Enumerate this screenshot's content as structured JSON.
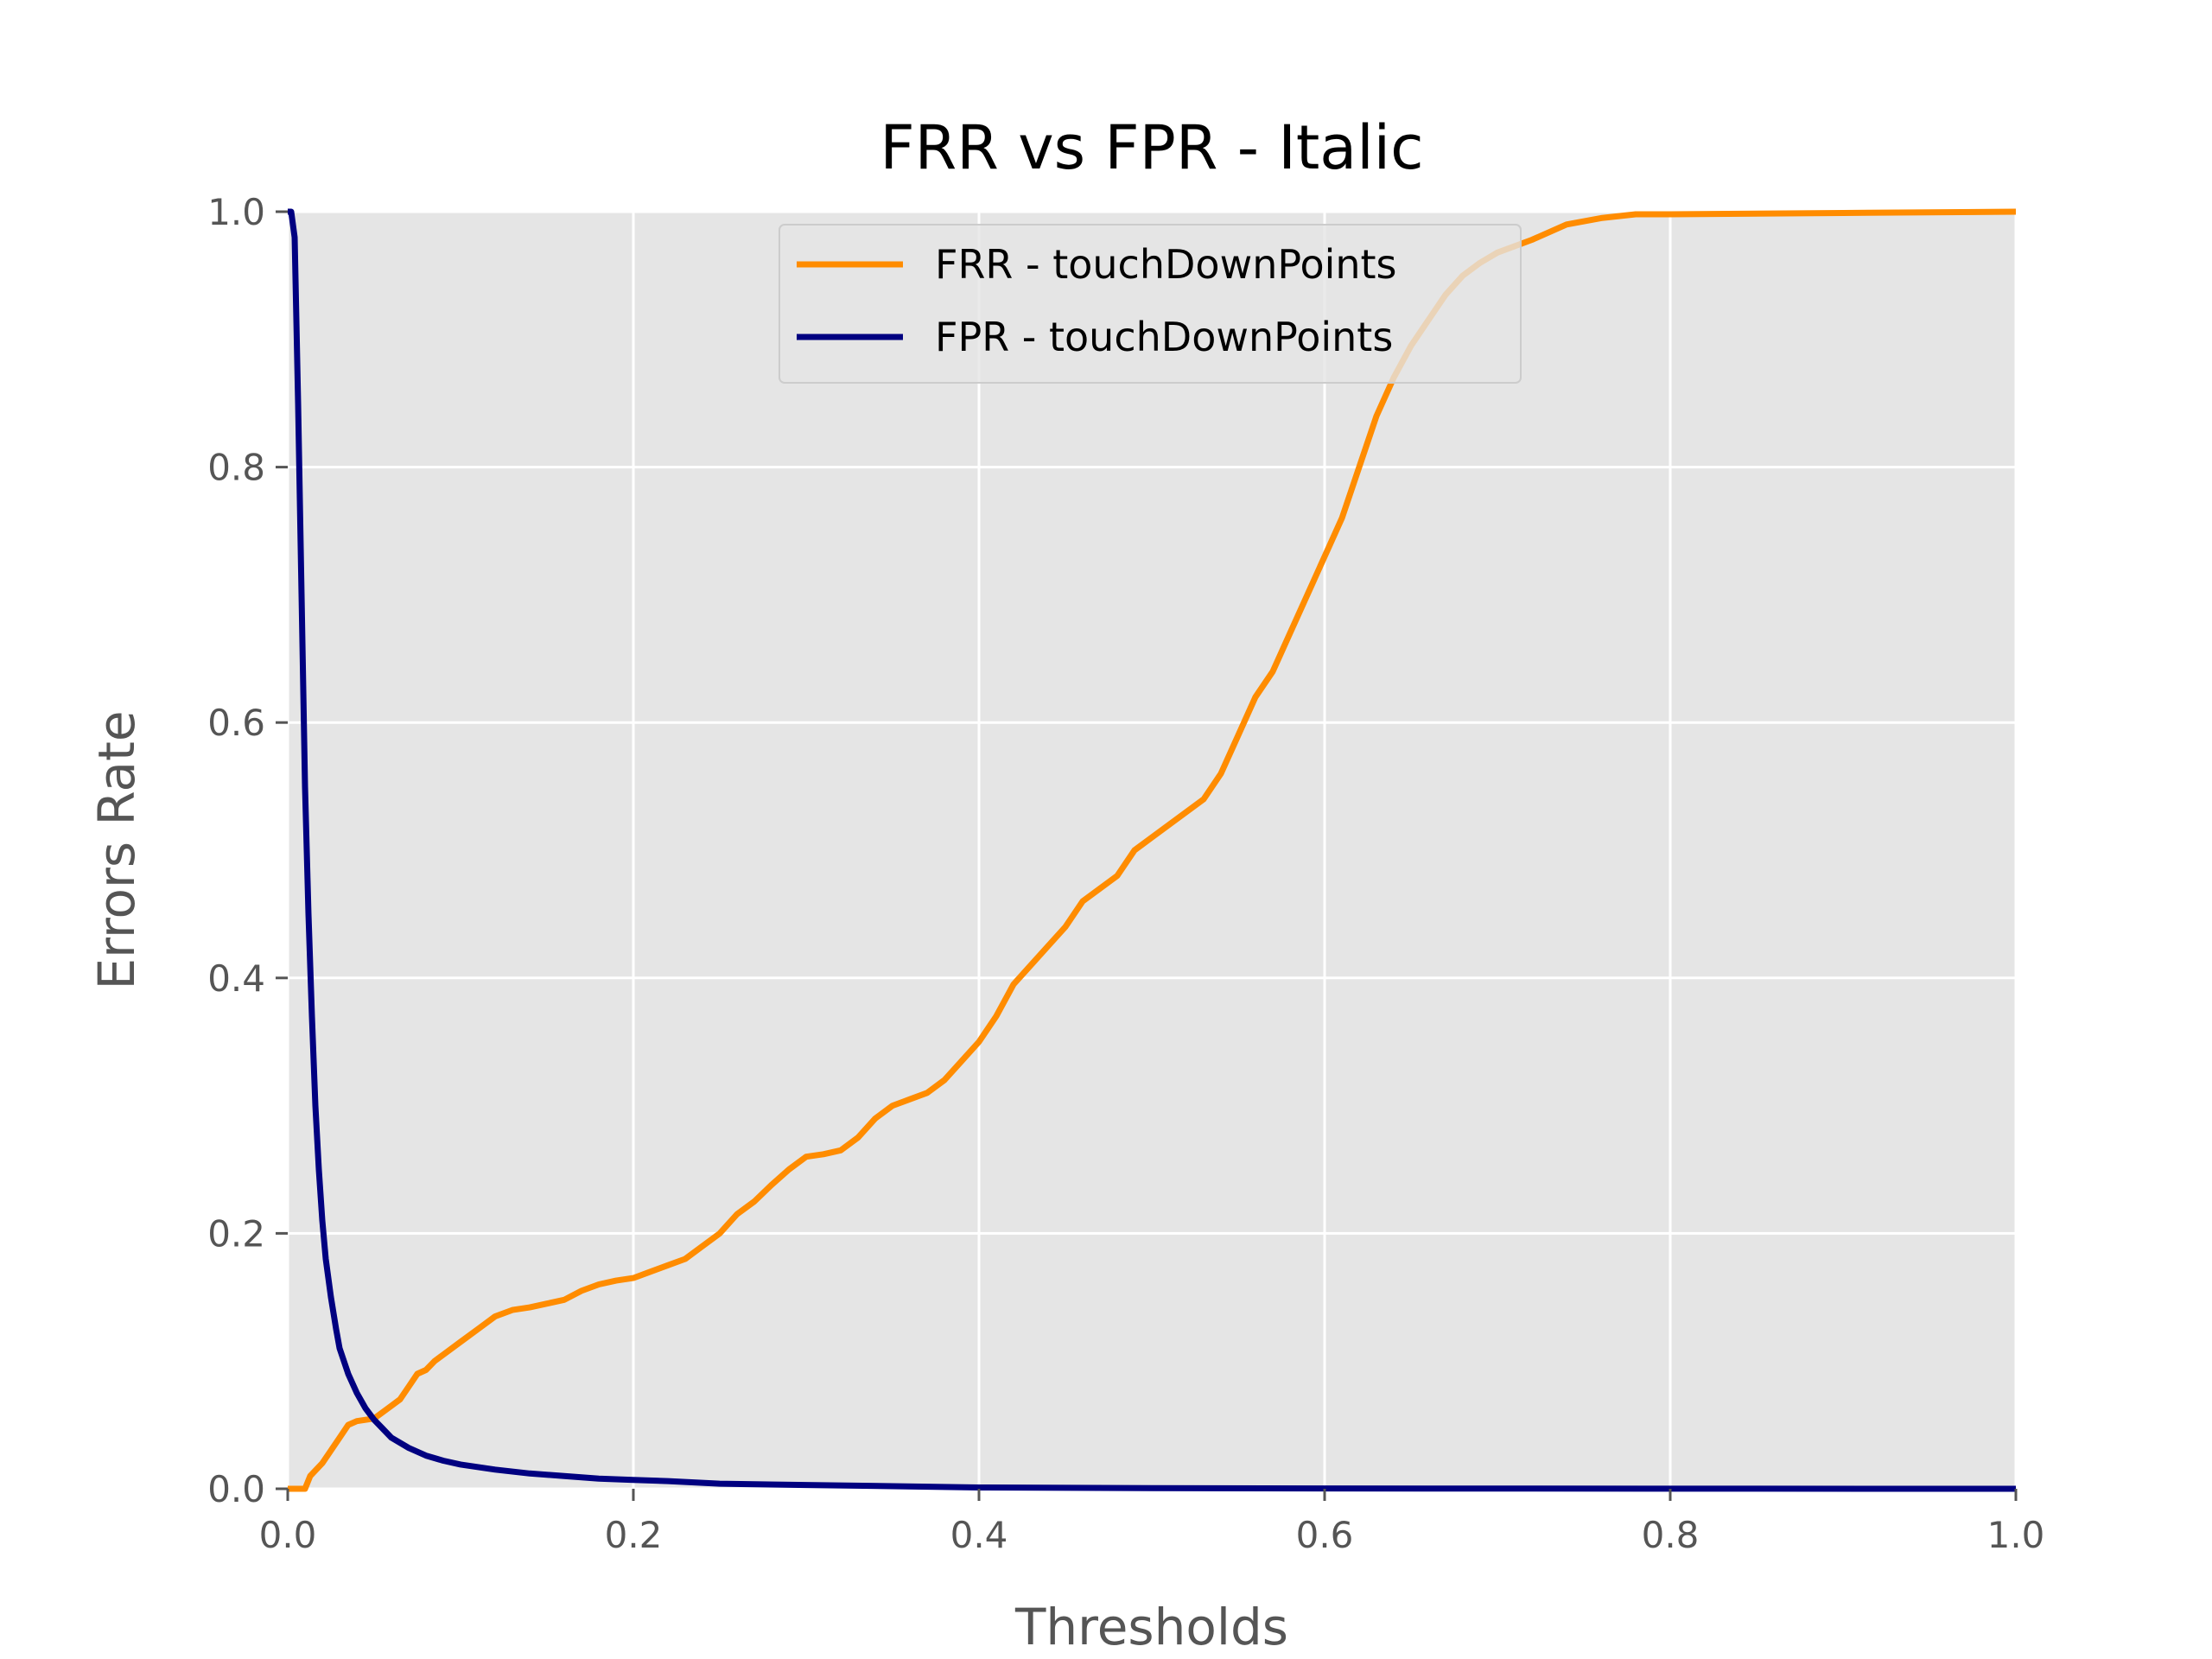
{
  "chart_data": {
    "type": "line",
    "title": "FRR vs FPR - Italic",
    "xlabel": "Thresholds",
    "ylabel": "Errors Rate",
    "xlim": [
      0.0,
      1.0
    ],
    "ylim": [
      0.0,
      1.0
    ],
    "xticks": [
      "0.0",
      "0.2",
      "0.4",
      "0.6",
      "0.8",
      "1.0"
    ],
    "yticks": [
      "0.0",
      "0.2",
      "0.4",
      "0.6",
      "0.8",
      "1.0"
    ],
    "grid": true,
    "background_color": "#e5e5e5",
    "grid_color": "#ffffff",
    "legend_position": "upper-center",
    "series": [
      {
        "name": "FRR - touchDownPoints",
        "color": "#ff8c00",
        "x": [
          0.0,
          0.01,
          0.013,
          0.02,
          0.025,
          0.03,
          0.035,
          0.04,
          0.05,
          0.055,
          0.06,
          0.065,
          0.07,
          0.075,
          0.08,
          0.085,
          0.09,
          0.1,
          0.11,
          0.12,
          0.13,
          0.14,
          0.15,
          0.16,
          0.17,
          0.18,
          0.19,
          0.2,
          0.21,
          0.22,
          0.23,
          0.24,
          0.25,
          0.26,
          0.27,
          0.28,
          0.29,
          0.3,
          0.31,
          0.32,
          0.33,
          0.34,
          0.35,
          0.36,
          0.37,
          0.38,
          0.39,
          0.4,
          0.41,
          0.42,
          0.43,
          0.44,
          0.45,
          0.46,
          0.47,
          0.48,
          0.49,
          0.5,
          0.51,
          0.52,
          0.53,
          0.54,
          0.55,
          0.56,
          0.57,
          0.58,
          0.59,
          0.6,
          0.61,
          0.62,
          0.63,
          0.64,
          0.65,
          0.66,
          0.67,
          0.68,
          0.69,
          0.7,
          0.72,
          0.74,
          0.76,
          0.78,
          0.8,
          0.9,
          1.0
        ],
        "y": [
          0.0,
          0.0,
          0.01,
          0.02,
          0.03,
          0.04,
          0.05,
          0.053,
          0.055,
          0.06,
          0.065,
          0.07,
          0.08,
          0.09,
          0.093,
          0.1,
          0.105,
          0.115,
          0.125,
          0.135,
          0.14,
          0.142,
          0.145,
          0.148,
          0.155,
          0.16,
          0.163,
          0.165,
          0.17,
          0.175,
          0.18,
          0.19,
          0.2,
          0.215,
          0.225,
          0.238,
          0.25,
          0.26,
          0.262,
          0.265,
          0.275,
          0.29,
          0.3,
          0.305,
          0.31,
          0.32,
          0.335,
          0.35,
          0.37,
          0.395,
          0.41,
          0.425,
          0.44,
          0.46,
          0.47,
          0.48,
          0.5,
          0.51,
          0.52,
          0.53,
          0.54,
          0.56,
          0.59,
          0.62,
          0.64,
          0.67,
          0.7,
          0.73,
          0.76,
          0.8,
          0.84,
          0.87,
          0.895,
          0.915,
          0.935,
          0.95,
          0.96,
          0.968,
          0.978,
          0.99,
          0.995,
          0.998,
          0.998,
          0.999,
          1.0
        ]
      },
      {
        "name": "FPR - touchDownPoints",
        "color": "#000080",
        "x": [
          0.0,
          0.002,
          0.004,
          0.006,
          0.008,
          0.01,
          0.012,
          0.014,
          0.016,
          0.018,
          0.02,
          0.022,
          0.025,
          0.028,
          0.03,
          0.035,
          0.04,
          0.045,
          0.05,
          0.055,
          0.06,
          0.07,
          0.08,
          0.09,
          0.1,
          0.12,
          0.14,
          0.16,
          0.18,
          0.2,
          0.22,
          0.25,
          0.3,
          0.35,
          0.4,
          0.5,
          0.6,
          0.8,
          1.0
        ],
        "y": [
          1.0,
          1.0,
          0.98,
          0.85,
          0.7,
          0.55,
          0.45,
          0.37,
          0.3,
          0.25,
          0.21,
          0.18,
          0.15,
          0.125,
          0.11,
          0.09,
          0.075,
          0.063,
          0.054,
          0.047,
          0.04,
          0.032,
          0.026,
          0.022,
          0.019,
          0.015,
          0.012,
          0.01,
          0.008,
          0.007,
          0.006,
          0.004,
          0.003,
          0.002,
          0.001,
          0.0005,
          0.0003,
          0.0001,
          0.0
        ]
      }
    ]
  }
}
